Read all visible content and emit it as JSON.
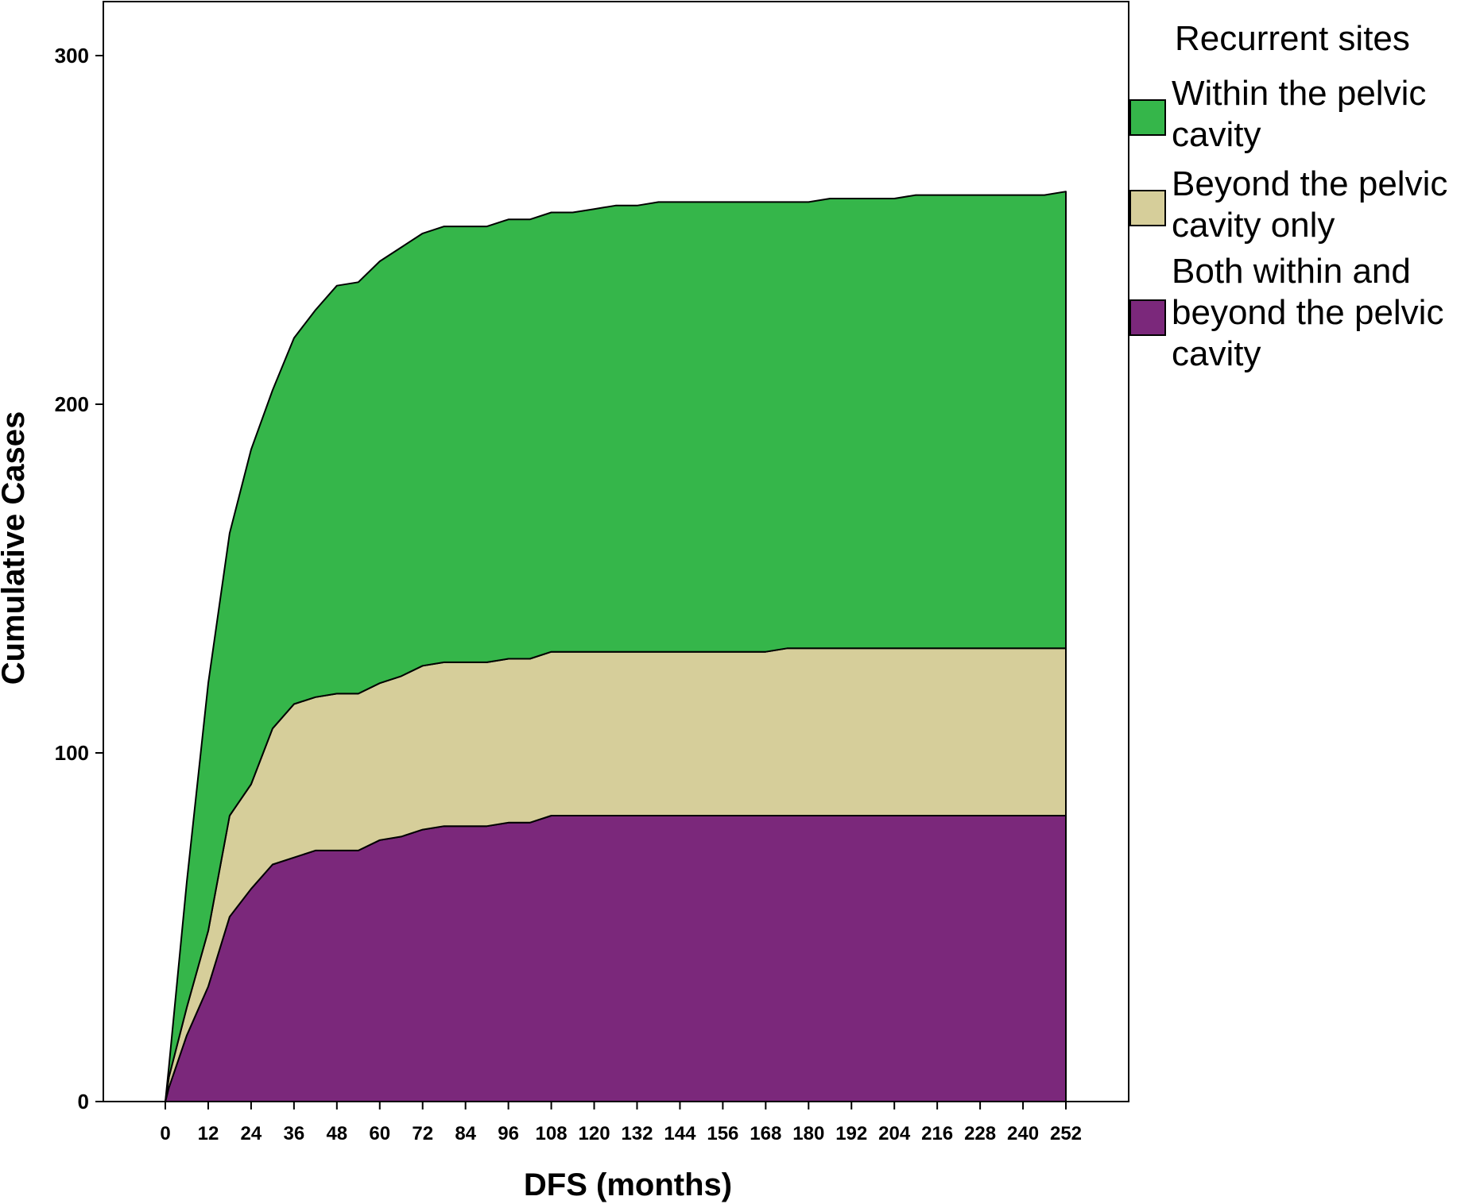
{
  "chart_data": {
    "type": "area",
    "stacked": true,
    "xlabel": "DFS (months)",
    "ylabel": "Cumulative Cases",
    "xlim": [
      0,
      252
    ],
    "ylim": [
      0,
      300
    ],
    "x_ticks": [
      0,
      12,
      24,
      36,
      48,
      60,
      72,
      84,
      96,
      108,
      120,
      132,
      144,
      156,
      168,
      180,
      192,
      204,
      216,
      228,
      240,
      252
    ],
    "x_tick_labels": [
      "0",
      "12",
      "24",
      "36",
      "48",
      "60",
      "72",
      "84",
      "96",
      "108",
      "120",
      "132",
      "144",
      "156",
      "168",
      "180",
      "192",
      "204",
      "216",
      "228",
      "240",
      "252"
    ],
    "y_ticks": [
      0,
      100,
      200,
      300
    ],
    "y_tick_labels": [
      "0",
      "100",
      "200",
      "300"
    ],
    "grid": false,
    "legend": {
      "title": "Recurrent sites",
      "placement": "right"
    },
    "x": [
      0,
      1,
      6,
      12,
      18,
      24,
      30,
      36,
      42,
      48,
      54,
      60,
      66,
      72,
      78,
      84,
      90,
      96,
      102,
      108,
      114,
      120,
      126,
      132,
      138,
      144,
      150,
      156,
      162,
      168,
      174,
      180,
      186,
      192,
      198,
      204,
      210,
      216,
      222,
      228,
      234,
      240,
      246,
      252
    ],
    "series": [
      {
        "name": "Both within and beyond the pelvic cavity",
        "legend_lines": [
          "Both within and",
          "beyond the pelvic",
          "cavity"
        ],
        "color": "#7b287b",
        "values": [
          0,
          4,
          19,
          33,
          53,
          61,
          68,
          70,
          72,
          72,
          72,
          75,
          76,
          78,
          79,
          79,
          79,
          80,
          80,
          82,
          82,
          82,
          82,
          82,
          82,
          82,
          82,
          82,
          82,
          82,
          82,
          82,
          82,
          82,
          82,
          82,
          82,
          82,
          82,
          82,
          82,
          82,
          82,
          82
        ]
      },
      {
        "name": "Beyond the pelvic cavity only",
        "legend_lines": [
          "Beyond the pelvic",
          "cavity only"
        ],
        "color": "#d6ce9a",
        "values": [
          0,
          3,
          8,
          16,
          29,
          30,
          39,
          44,
          44,
          45,
          45,
          45,
          46,
          47,
          47,
          47,
          47,
          47,
          47,
          47,
          47,
          47,
          47,
          47,
          47,
          47,
          47,
          47,
          47,
          47,
          48,
          48,
          48,
          48,
          48,
          48,
          48,
          48,
          48,
          48,
          48,
          48,
          48,
          48
        ]
      },
      {
        "name": "Within the pelvic cavity",
        "legend_lines": [
          "Within the pelvic",
          "cavity"
        ],
        "color": "#35b64a",
        "values": [
          0,
          3,
          36,
          71,
          81,
          96,
          97,
          105,
          111,
          117,
          118,
          121,
          123,
          124,
          125,
          125,
          125,
          126,
          126,
          126,
          126,
          127,
          128,
          128,
          129,
          129,
          129,
          129,
          129,
          129,
          128,
          128,
          129,
          129,
          129,
          129,
          130,
          130,
          130,
          130,
          130,
          130,
          130,
          131
        ]
      }
    ]
  }
}
